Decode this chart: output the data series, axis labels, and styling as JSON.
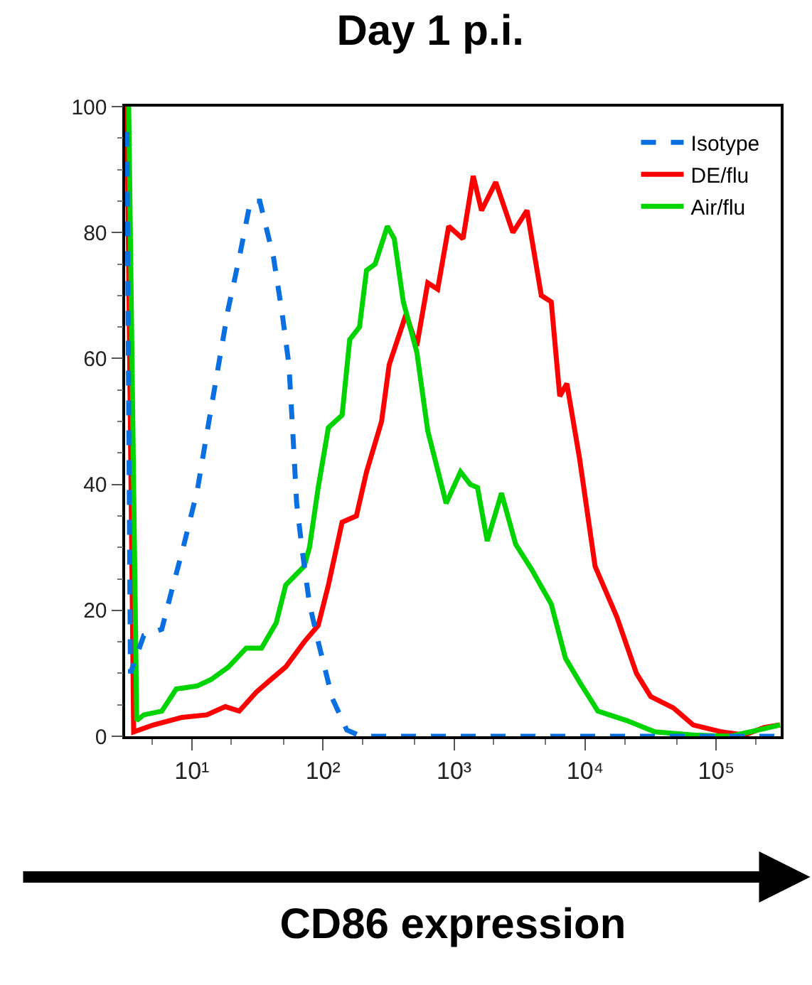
{
  "chart_data": {
    "type": "line",
    "title": "Day 1 p.i.",
    "xlabel": "CD86 expression",
    "log": "x",
    "xlim": [
      3.1,
      310000
    ],
    "xticks": [
      {
        "value": 10,
        "label": "10¹"
      },
      {
        "value": 100,
        "label": "10²"
      },
      {
        "value": 1000,
        "label": "10³"
      },
      {
        "value": 10000,
        "label": "10⁴"
      },
      {
        "value": 100000,
        "label": "10⁵"
      }
    ],
    "ylim": [
      0,
      100
    ],
    "yticks": [
      0,
      20,
      40,
      60,
      80,
      100
    ],
    "legend": "top right",
    "marker": "none",
    "series": [
      {
        "name": "Isotype",
        "color": "#0a6fe0",
        "line_style": "dashed",
        "x": [
          3.2,
          3.4,
          4.3,
          5.9,
          7.0,
          8.6,
          11,
          13,
          16,
          19,
          23,
          28,
          33,
          42,
          49,
          55,
          59,
          63,
          70,
          79,
          92,
          118,
          152,
          195,
          310000
        ],
        "values": [
          96,
          10,
          16,
          17,
          23,
          30,
          39,
          48,
          59,
          68,
          76,
          85,
          85,
          76,
          67,
          59,
          48,
          37,
          29,
          21,
          15,
          6,
          1,
          0,
          0
        ]
      },
      {
        "name": "DE/flu",
        "color": "#ff0000",
        "line_style": "solid",
        "x": [
          3.2,
          3.6,
          5.1,
          8.4,
          13,
          18,
          23,
          31,
          40,
          52,
          72,
          92,
          110,
          140,
          180,
          215,
          280,
          320,
          430,
          520,
          630,
          750,
          910,
          1170,
          1400,
          1620,
          2080,
          2810,
          3600,
          4630,
          5510,
          6400,
          7250,
          9080,
          11900,
          17400,
          24600,
          31600,
          47100,
          66700,
          110000,
          164000,
          232000,
          306000
        ],
        "values": [
          100,
          0.7,
          1.8,
          3,
          3.4,
          4.7,
          4,
          7,
          9,
          11,
          15,
          17.6,
          24,
          34,
          35,
          42,
          50,
          59,
          67,
          62,
          72,
          71,
          81,
          79,
          89,
          83.5,
          88,
          80,
          83.5,
          70,
          69,
          54,
          56,
          44,
          27,
          19,
          10,
          6.3,
          4.5,
          1.8,
          0.7,
          0.2,
          1.4,
          1.8
        ]
      },
      {
        "name": "Air/flu",
        "color": "#00d400",
        "line_style": "solid",
        "x": [
          3.3,
          3.8,
          4.3,
          5.9,
          7.6,
          11,
          14,
          19,
          26,
          34,
          44,
          52,
          72,
          79,
          92,
          110,
          140,
          160,
          190,
          215,
          250,
          310,
          350,
          410,
          520,
          630,
          870,
          1120,
          1330,
          1510,
          1790,
          2300,
          2950,
          3880,
          5510,
          7070,
          9080,
          12500,
          20700,
          34000,
          66700,
          128000,
          210000,
          306000
        ],
        "values": [
          100,
          2.5,
          3.4,
          4,
          7.5,
          8,
          9,
          11,
          14,
          14,
          18,
          24,
          27,
          30,
          39.5,
          49,
          51,
          63,
          65,
          74,
          75,
          81,
          79,
          69,
          61,
          48.5,
          37,
          42,
          40,
          39.5,
          31,
          38.6,
          30.5,
          26.6,
          21,
          12.4,
          8.6,
          4,
          2.5,
          0.7,
          0.2,
          0,
          1,
          1.8
        ]
      }
    ]
  }
}
